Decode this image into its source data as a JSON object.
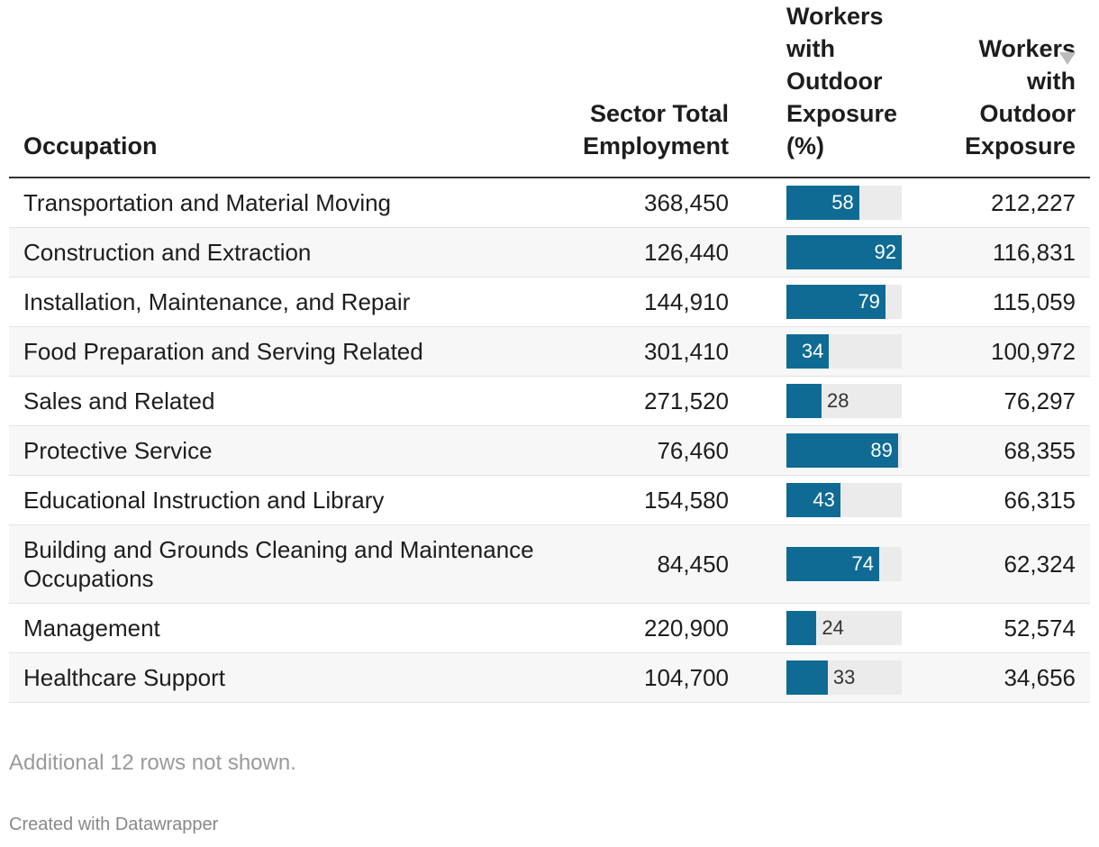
{
  "table": {
    "headers": [
      "Occupation",
      "Sector Total Employment",
      "Workers with Outdoor Exposure (%)",
      "Workers with Outdoor Exposure"
    ],
    "rows": [
      [
        "Transportation and Material Moving",
        "368,450",
        58,
        "212,227"
      ],
      [
        "Construction and Extraction",
        "126,440",
        92,
        "116,831"
      ],
      [
        "Installation, Maintenance, and Repair",
        "144,910",
        79,
        "115,059"
      ],
      [
        "Food Preparation and Serving Related",
        "301,410",
        34,
        "100,972"
      ],
      [
        "Sales and Related",
        "271,520",
        28,
        "76,297"
      ],
      [
        "Protective Service",
        "76,460",
        89,
        "68,355"
      ],
      [
        "Educational Instruction and Library",
        "154,580",
        43,
        "66,315"
      ],
      [
        "Building and Grounds Cleaning and Maintenance Occupations",
        "84,450",
        74,
        "62,324"
      ],
      [
        "Management",
        "220,900",
        24,
        "52,574"
      ],
      [
        "Healthcare Support",
        "104,700",
        33,
        "34,656"
      ]
    ],
    "bar_color": "#0f6b94"
  },
  "footer": {
    "note": "Additional 12 rows not shown.",
    "credit": "Created with Datawrapper"
  }
}
